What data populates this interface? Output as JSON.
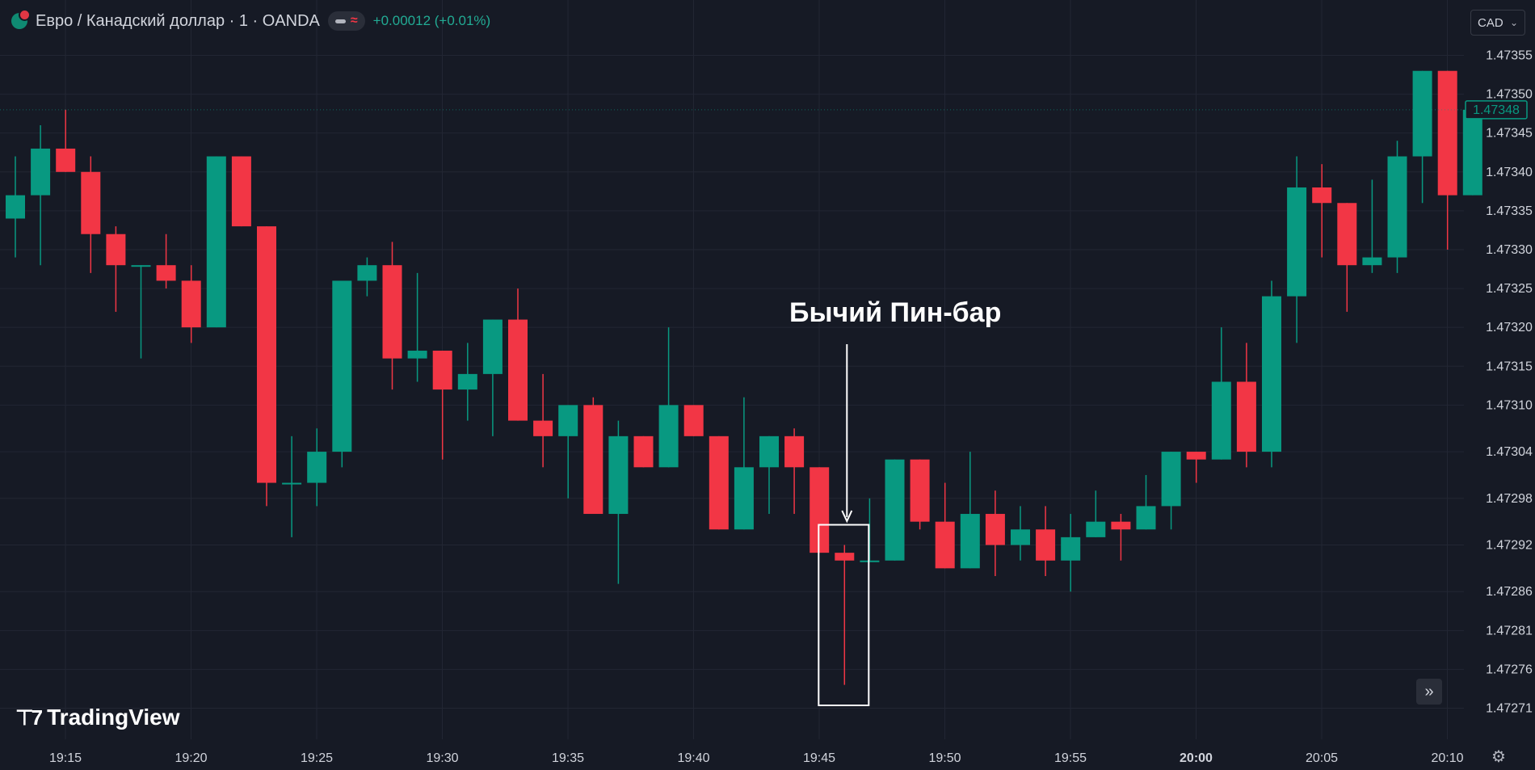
{
  "header": {
    "symbol": "Евро / Канадский доллар · 1 · OANDA",
    "change": "+0.00012 (+0.01%)",
    "wave_glyph": "≈",
    "icon": "eur-cad-flag-icon"
  },
  "currency_button": {
    "label": "CAD",
    "chevron": "⌄"
  },
  "annotation": {
    "label": "Бычий Пин-бар"
  },
  "logo": {
    "mark": "⊤7",
    "text": "TradingView"
  },
  "buttons": {
    "scroll_glyph": "»",
    "settings_glyph": "⚙"
  },
  "colors": {
    "up": "#089981",
    "down": "#f23645",
    "background": "#161a25",
    "grid": "#232734",
    "last_price_badge": "#089981"
  },
  "chart_data": {
    "type": "candlestick",
    "title": "Евро / Канадский доллар · 1 · OANDA",
    "x_ticks": [
      "19:15",
      "19:20",
      "19:25",
      "19:30",
      "19:35",
      "19:40",
      "19:45",
      "19:50",
      "19:55",
      "20:00",
      "20:05",
      "20:10"
    ],
    "y_ticks": [
      "1.47355",
      "1.47350",
      "1.47345",
      "1.47340",
      "1.47335",
      "1.47330",
      "1.47325",
      "1.47320",
      "1.47315",
      "1.47310",
      "1.47304",
      "1.47298",
      "1.47292",
      "1.47286",
      "1.47281",
      "1.47276",
      "1.47271"
    ],
    "last_price": "1.47348",
    "ylim": [
      1.4727,
      1.47358
    ],
    "grid": true,
    "candles": [
      {
        "time": "19:13",
        "open": 1.47334,
        "high": 1.47342,
        "low": 1.47329,
        "close": 1.47337
      },
      {
        "time": "19:14",
        "open": 1.47337,
        "high": 1.47346,
        "low": 1.47328,
        "close": 1.47343
      },
      {
        "time": "19:15",
        "open": 1.47343,
        "high": 1.47348,
        "low": 1.4734,
        "close": 1.4734
      },
      {
        "time": "19:16",
        "open": 1.4734,
        "high": 1.47342,
        "low": 1.47327,
        "close": 1.47332
      },
      {
        "time": "19:17",
        "open": 1.47332,
        "high": 1.47333,
        "low": 1.47322,
        "close": 1.47328
      },
      {
        "time": "19:18",
        "open": 1.47328,
        "high": 1.47328,
        "low": 1.47316,
        "close": 1.47328
      },
      {
        "time": "19:19",
        "open": 1.47328,
        "high": 1.47332,
        "low": 1.47325,
        "close": 1.47326
      },
      {
        "time": "19:20",
        "open": 1.47326,
        "high": 1.47328,
        "low": 1.47318,
        "close": 1.4732
      },
      {
        "time": "19:21",
        "open": 1.4732,
        "high": 1.47342,
        "low": 1.4732,
        "close": 1.47342
      },
      {
        "time": "19:22",
        "open": 1.47342,
        "high": 1.47342,
        "low": 1.47333,
        "close": 1.47333
      },
      {
        "time": "19:23",
        "open": 1.47333,
        "high": 1.47333,
        "low": 1.47297,
        "close": 1.473
      },
      {
        "time": "19:24",
        "open": 1.473,
        "high": 1.47306,
        "low": 1.47293,
        "close": 1.473
      },
      {
        "time": "19:25",
        "open": 1.473,
        "high": 1.47307,
        "low": 1.47297,
        "close": 1.47304
      },
      {
        "time": "19:26",
        "open": 1.47304,
        "high": 1.47326,
        "low": 1.47302,
        "close": 1.47326
      },
      {
        "time": "19:27",
        "open": 1.47326,
        "high": 1.47329,
        "low": 1.47324,
        "close": 1.47328
      },
      {
        "time": "19:28",
        "open": 1.47328,
        "high": 1.47331,
        "low": 1.47312,
        "close": 1.47316
      },
      {
        "time": "19:29",
        "open": 1.47316,
        "high": 1.47327,
        "low": 1.47313,
        "close": 1.47317
      },
      {
        "time": "19:30",
        "open": 1.47317,
        "high": 1.47317,
        "low": 1.47303,
        "close": 1.47312
      },
      {
        "time": "19:31",
        "open": 1.47312,
        "high": 1.47318,
        "low": 1.47308,
        "close": 1.47314
      },
      {
        "time": "19:32",
        "open": 1.47314,
        "high": 1.47321,
        "low": 1.47306,
        "close": 1.47321
      },
      {
        "time": "19:33",
        "open": 1.47321,
        "high": 1.47325,
        "low": 1.47308,
        "close": 1.47308
      },
      {
        "time": "19:34",
        "open": 1.47308,
        "high": 1.47314,
        "low": 1.47302,
        "close": 1.47306
      },
      {
        "time": "19:35",
        "open": 1.47306,
        "high": 1.4731,
        "low": 1.47298,
        "close": 1.4731
      },
      {
        "time": "19:36",
        "open": 1.4731,
        "high": 1.47311,
        "low": 1.47296,
        "close": 1.47296
      },
      {
        "time": "19:37",
        "open": 1.47296,
        "high": 1.47308,
        "low": 1.47287,
        "close": 1.47306
      },
      {
        "time": "19:38",
        "open": 1.47306,
        "high": 1.47306,
        "low": 1.47302,
        "close": 1.47302
      },
      {
        "time": "19:39",
        "open": 1.47302,
        "high": 1.4732,
        "low": 1.47302,
        "close": 1.4731
      },
      {
        "time": "19:40",
        "open": 1.4731,
        "high": 1.4731,
        "low": 1.47306,
        "close": 1.47306
      },
      {
        "time": "19:41",
        "open": 1.47306,
        "high": 1.47306,
        "low": 1.47294,
        "close": 1.47294
      },
      {
        "time": "19:42",
        "open": 1.47294,
        "high": 1.47311,
        "low": 1.47294,
        "close": 1.47302
      },
      {
        "time": "19:43",
        "open": 1.47302,
        "high": 1.47306,
        "low": 1.47296,
        "close": 1.47306
      },
      {
        "time": "19:44",
        "open": 1.47306,
        "high": 1.47307,
        "low": 1.47296,
        "close": 1.47302
      },
      {
        "time": "19:45",
        "open": 1.47302,
        "high": 1.47302,
        "low": 1.47291,
        "close": 1.47291
      },
      {
        "time": "19:46",
        "open": 1.47291,
        "high": 1.47292,
        "low": 1.47274,
        "close": 1.4729
      },
      {
        "time": "19:47",
        "open": 1.4729,
        "high": 1.47298,
        "low": 1.4729,
        "close": 1.4729
      },
      {
        "time": "19:48",
        "open": 1.4729,
        "high": 1.47303,
        "low": 1.4729,
        "close": 1.47303
      },
      {
        "time": "19:49",
        "open": 1.47303,
        "high": 1.47303,
        "low": 1.47294,
        "close": 1.47295
      },
      {
        "time": "19:50",
        "open": 1.47295,
        "high": 1.473,
        "low": 1.47289,
        "close": 1.47289
      },
      {
        "time": "19:51",
        "open": 1.47289,
        "high": 1.47304,
        "low": 1.47289,
        "close": 1.47296
      },
      {
        "time": "19:52",
        "open": 1.47296,
        "high": 1.47299,
        "low": 1.47288,
        "close": 1.47292
      },
      {
        "time": "19:53",
        "open": 1.47292,
        "high": 1.47297,
        "low": 1.4729,
        "close": 1.47294
      },
      {
        "time": "19:54",
        "open": 1.47294,
        "high": 1.47297,
        "low": 1.47288,
        "close": 1.4729
      },
      {
        "time": "19:55",
        "open": 1.4729,
        "high": 1.47296,
        "low": 1.47286,
        "close": 1.47293
      },
      {
        "time": "19:56",
        "open": 1.47293,
        "high": 1.47299,
        "low": 1.47293,
        "close": 1.47295
      },
      {
        "time": "19:57",
        "open": 1.47295,
        "high": 1.47296,
        "low": 1.4729,
        "close": 1.47294
      },
      {
        "time": "19:58",
        "open": 1.47294,
        "high": 1.47301,
        "low": 1.47294,
        "close": 1.47297
      },
      {
        "time": "19:59",
        "open": 1.47297,
        "high": 1.47304,
        "low": 1.47294,
        "close": 1.47304
      },
      {
        "time": "20:00",
        "open": 1.47304,
        "high": 1.47304,
        "low": 1.473,
        "close": 1.47303
      },
      {
        "time": "20:01",
        "open": 1.47303,
        "high": 1.4732,
        "low": 1.47303,
        "close": 1.47313
      },
      {
        "time": "20:02",
        "open": 1.47313,
        "high": 1.47318,
        "low": 1.47302,
        "close": 1.47304
      },
      {
        "time": "20:03",
        "open": 1.47304,
        "high": 1.47326,
        "low": 1.47302,
        "close": 1.47324
      },
      {
        "time": "20:04",
        "open": 1.47324,
        "high": 1.47342,
        "low": 1.47318,
        "close": 1.47338
      },
      {
        "time": "20:05",
        "open": 1.47338,
        "high": 1.47341,
        "low": 1.47329,
        "close": 1.47336
      },
      {
        "time": "20:06",
        "open": 1.47336,
        "high": 1.47336,
        "low": 1.47322,
        "close": 1.47328
      },
      {
        "time": "20:07",
        "open": 1.47328,
        "high": 1.47339,
        "low": 1.47327,
        "close": 1.47329
      },
      {
        "time": "20:08",
        "open": 1.47329,
        "high": 1.47344,
        "low": 1.47327,
        "close": 1.47342
      },
      {
        "time": "20:09",
        "open": 1.47342,
        "high": 1.47353,
        "low": 1.47336,
        "close": 1.47353
      },
      {
        "time": "20:10",
        "open": 1.47353,
        "high": 1.47353,
        "low": 1.4733,
        "close": 1.47337
      },
      {
        "time": "20:11",
        "open": 1.47337,
        "high": 1.47349,
        "low": 1.47337,
        "close": 1.47348
      }
    ],
    "annotation": {
      "text": "Бычий Пин-бар",
      "target_time": "19:46"
    }
  }
}
